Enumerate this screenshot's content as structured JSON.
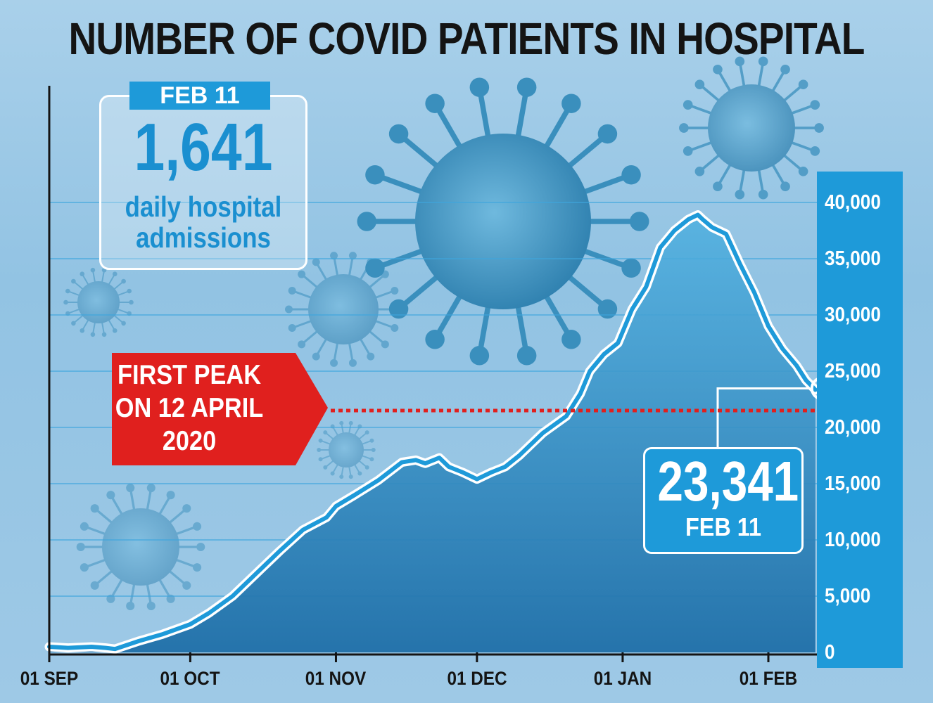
{
  "title": "NUMBER OF COVID PATIENTS IN HOSPITAL",
  "colors": {
    "background": "#9ec9e6",
    "line": "#1e9ad9",
    "area": "#2a8fcf",
    "peak_line": "#e0201e",
    "axis_panel": "#1e9ad9"
  },
  "callout_admissions": {
    "date": "FEB 11",
    "value": "1,641",
    "description": "daily hospital admissions"
  },
  "first_peak": {
    "label": "FIRST PEAK\nON 12 APRIL\n2020",
    "value": 21500
  },
  "callout_latest": {
    "value": "23,341",
    "date": "FEB 11"
  },
  "icons": [
    "virus-icon"
  ],
  "chart_data": {
    "type": "area",
    "title": "NUMBER OF COVID PATIENTS IN HOSPITAL",
    "ylim": [
      0,
      40000
    ],
    "y_ticks": [
      "0",
      "5,000",
      "10,000",
      "15,000",
      "20,000",
      "25,000",
      "30,000",
      "35,000",
      "40,000"
    ],
    "y_tick_values": [
      0,
      5000,
      10000,
      15000,
      20000,
      25000,
      30000,
      35000,
      40000
    ],
    "x_ticks": [
      "01 SEP",
      "01 OCT",
      "01 NOV",
      "01 DEC",
      "01 JAN",
      "01 FEB"
    ],
    "x_tick_dates": [
      "2020-09-01",
      "2020-10-01",
      "2020-11-01",
      "2020-12-01",
      "2021-01-01",
      "2021-02-01"
    ],
    "xlim": [
      "2020-09-01",
      "2021-02-11"
    ],
    "grid": true,
    "y_axis_side": "right",
    "series": [
      {
        "x": [
          "2020-09-01",
          "2020-09-05",
          "2020-09-10",
          "2020-09-13",
          "2020-09-15",
          "2020-09-20",
          "2020-09-25",
          "2020-10-01",
          "2020-10-05",
          "2020-10-10",
          "2020-10-15",
          "2020-10-20",
          "2020-10-25",
          "2020-10-30",
          "2020-11-01",
          "2020-11-05",
          "2020-11-10",
          "2020-11-15",
          "2020-11-18",
          "2020-11-20",
          "2020-11-23",
          "2020-11-25",
          "2020-11-28",
          "2020-12-01",
          "2020-12-04",
          "2020-12-07",
          "2020-12-10",
          "2020-12-15",
          "2020-12-20",
          "2020-12-23",
          "2020-12-25",
          "2020-12-28",
          "2020-12-31",
          "2021-01-03",
          "2021-01-06",
          "2021-01-09",
          "2021-01-12",
          "2021-01-15",
          "2021-01-17",
          "2021-01-18",
          "2021-01-20",
          "2021-01-23",
          "2021-01-26",
          "2021-01-29",
          "2021-02-01",
          "2021-02-04",
          "2021-02-07",
          "2021-02-09",
          "2021-02-11"
        ],
        "values": [
          500,
          400,
          500,
          400,
          300,
          1000,
          1600,
          2500,
          3500,
          5000,
          7000,
          9000,
          10900,
          12000,
          13000,
          14000,
          15300,
          16900,
          17100,
          16800,
          17300,
          16500,
          16000,
          15400,
          16000,
          16500,
          17500,
          19500,
          21000,
          23000,
          25000,
          26500,
          27500,
          30500,
          32500,
          36000,
          37500,
          38500,
          38900,
          38500,
          37800,
          37200,
          34500,
          32000,
          29000,
          27000,
          25500,
          24200,
          23341
        ]
      }
    ]
  }
}
